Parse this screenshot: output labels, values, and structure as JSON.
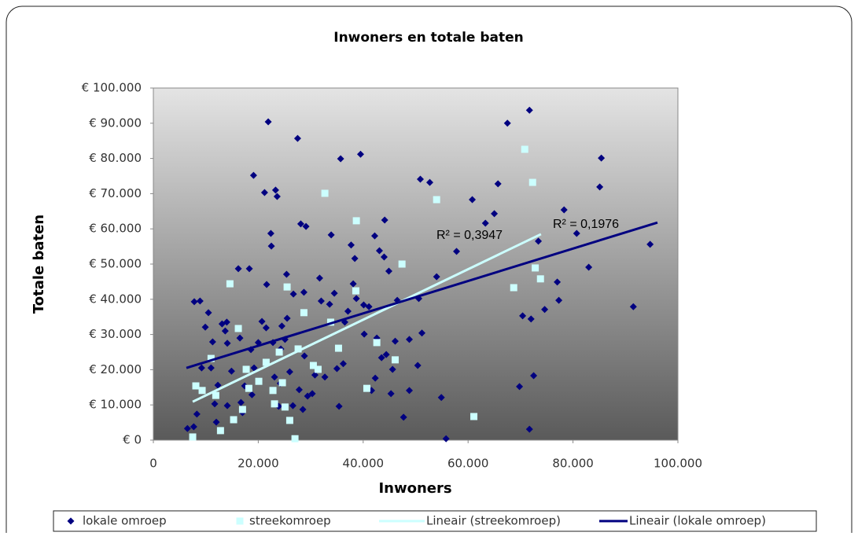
{
  "chart_data": {
    "type": "scatter",
    "title": "Inwoners en totale baten",
    "xlabel": "Inwoners",
    "ylabel": "Totale baten",
    "xlim": [
      0,
      100000
    ],
    "ylim": [
      0,
      100000
    ],
    "xticks": [
      0,
      {
        "value": 20000,
        "label": "20.000"
      },
      {
        "value": 40000,
        "label": "40.000"
      },
      {
        "value": 60000,
        "label": "60.000"
      },
      {
        "value": 80000,
        "label": "80.000"
      },
      {
        "value": 100000,
        "label": "100.000"
      }
    ],
    "yticks": [
      {
        "value": 0,
        "label": "€ 0"
      },
      {
        "value": 10000,
        "label": "€ 10.000"
      },
      {
        "value": 20000,
        "label": "€ 20.000"
      },
      {
        "value": 30000,
        "label": "€ 30.000"
      },
      {
        "value": 40000,
        "label": "€ 40.000"
      },
      {
        "value": 50000,
        "label": "€ 50.000"
      },
      {
        "value": 60000,
        "label": "€ 60.000"
      },
      {
        "value": 70000,
        "label": "€ 70.000"
      },
      {
        "value": 80000,
        "label": "€ 80.000"
      },
      {
        "value": 90000,
        "label": "€ 90.000"
      },
      {
        "value": 100000,
        "label": "€ 100.000"
      }
    ],
    "grid": false,
    "legend": "bottom",
    "annotations": [
      "R² = 0,3947",
      "R² = 0,1976"
    ],
    "series": [
      {
        "name": "lokale omroep",
        "color": "#000080",
        "marker": "diamond",
        "x": [
          6500,
          7700,
          8300,
          7800,
          8900,
          9200,
          9900,
          10500,
          11000,
          11300,
          11700,
          12000,
          12300,
          13100,
          13700,
          14000,
          14100,
          14100,
          14900,
          16200,
          16500,
          16700,
          17000,
          17400,
          18300,
          18600,
          18800,
          19100,
          19200,
          20000,
          20700,
          21200,
          21500,
          21600,
          21900,
          22400,
          22500,
          22800,
          23100,
          23300,
          23600,
          23900,
          24200,
          24300,
          24500,
          25100,
          25400,
          25500,
          26000,
          26600,
          26700,
          27500,
          27800,
          28100,
          28500,
          28700,
          28800,
          29100,
          29400,
          30300,
          30800,
          31700,
          32000,
          32700,
          33600,
          33900,
          34500,
          35000,
          35400,
          35700,
          36200,
          36500,
          37100,
          37700,
          38100,
          38400,
          38700,
          39500,
          40100,
          40200,
          41100,
          41600,
          42200,
          42300,
          42600,
          43100,
          43500,
          44000,
          44100,
          44400,
          44900,
          45300,
          45600,
          46100,
          46500,
          47700,
          48800,
          48800,
          50400,
          50600,
          50900,
          51200,
          52700,
          54000,
          54900,
          55800,
          57800,
          60800,
          63300,
          65000,
          65700,
          67500,
          69800,
          70400,
          71700,
          71700,
          72000,
          72500,
          73400,
          74600,
          77000,
          77300,
          78300,
          80700,
          83000,
          85100,
          85400,
          91500,
          94700
        ],
        "values": [
          3300,
          3800,
          7400,
          39300,
          39500,
          20500,
          32100,
          36200,
          20500,
          27900,
          10300,
          5100,
          15600,
          33000,
          31000,
          33500,
          27500,
          9800,
          19600,
          48700,
          29000,
          10700,
          7800,
          15400,
          48700,
          25700,
          12900,
          75200,
          20500,
          27700,
          33700,
          70300,
          31900,
          44200,
          90400,
          58700,
          55100,
          27700,
          17900,
          71000,
          69200,
          9600,
          16100,
          25900,
          32400,
          28600,
          47100,
          34600,
          19400,
          9800,
          41500,
          85700,
          14300,
          61400,
          8700,
          42000,
          23900,
          60700,
          12500,
          13200,
          18500,
          46000,
          39500,
          17900,
          38600,
          58300,
          41700,
          20300,
          9600,
          79900,
          21700,
          33500,
          36600,
          55400,
          44400,
          51600,
          40200,
          81200,
          38400,
          30100,
          37900,
          14100,
          58000,
          17600,
          29000,
          53800,
          23400,
          52000,
          62500,
          24300,
          48000,
          13200,
          20100,
          28100,
          39700,
          6500,
          14100,
          28600,
          21200,
          40200,
          74100,
          30400,
          73200,
          46400,
          12100,
          400,
          53600,
          68300,
          61600,
          64300,
          72800,
          90000,
          15200,
          35300,
          3100,
          93700,
          34400,
          18300,
          56500,
          37100,
          44900,
          39700,
          65400,
          58700,
          49100,
          71900,
          80100,
          37900,
          55600
        ]
      },
      {
        "name": "streekomroep",
        "color": "#ccffff",
        "marker": "square",
        "x": [
          7500,
          8100,
          9300,
          11000,
          11900,
          12800,
          14600,
          15300,
          16200,
          17000,
          17700,
          18200,
          20100,
          21500,
          22800,
          23100,
          24000,
          24600,
          25100,
          25500,
          26000,
          27000,
          27600,
          28700,
          30500,
          31400,
          32700,
          33800,
          35300,
          38700,
          38600,
          40700,
          42600,
          46100,
          47400,
          54000,
          61100,
          68700,
          70800,
          72300,
          72800,
          73800
        ],
        "values": [
          900,
          15400,
          14100,
          23200,
          12700,
          2700,
          44400,
          5800,
          31700,
          8700,
          20100,
          14700,
          16700,
          22100,
          14100,
          10300,
          25000,
          16300,
          9400,
          43500,
          5600,
          400,
          25900,
          36200,
          21200,
          20100,
          70100,
          33500,
          26100,
          62300,
          42400,
          14700,
          27700,
          22800,
          50000,
          68300,
          6700,
          43300,
          82600,
          73200,
          48900,
          45800
        ]
      },
      {
        "name": "Lineair (streekomroep)",
        "color": "#ccffff",
        "marker": "line",
        "x": [
          7500,
          73900
        ],
        "values": [
          10900,
          58500
        ]
      },
      {
        "name": "Lineair (lokale omroep)",
        "color": "#000080",
        "marker": "line",
        "x": [
          6300,
          96100
        ],
        "values": [
          20500,
          61800
        ]
      }
    ]
  }
}
